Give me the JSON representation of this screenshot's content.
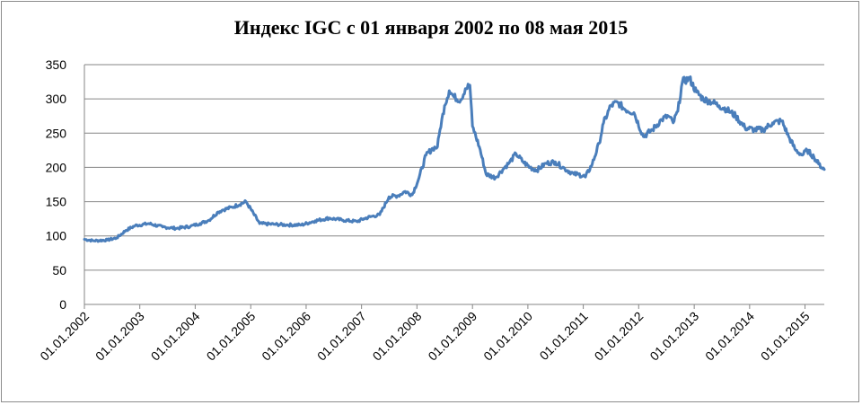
{
  "chart_data": {
    "type": "line",
    "title": "Индекс IGC с 01 января 2002 по 08 мая 2015",
    "xlabel": "",
    "ylabel": "",
    "ylim": [
      0,
      350
    ],
    "yticks": [
      0,
      50,
      100,
      150,
      200,
      250,
      300,
      350
    ],
    "xticks": [
      "01.01.2002",
      "01.01.2003",
      "01.01.2004",
      "01.01.2005",
      "01.01.2006",
      "01.01.2007",
      "01.01.2008",
      "01.01.2009",
      "01.01.2010",
      "01.01.2011",
      "01.01.2012",
      "01.01.2013",
      "01.01.2014",
      "01.01.2015"
    ],
    "xrange": [
      "2002-01-01",
      "2015-05-08"
    ],
    "grid": true,
    "series_color": "#4a7ebb",
    "series": [
      {
        "x": [
          "2002-01-01",
          "2002-03-01",
          "2002-06-01",
          "2002-08-01",
          "2002-10-01",
          "2002-12-01",
          "2003-03-01",
          "2003-06-01",
          "2003-09-01",
          "2003-12-01",
          "2004-02-01",
          "2004-04-01",
          "2004-06-01",
          "2004-07-01",
          "2004-09-01",
          "2004-12-01",
          "2005-03-01",
          "2005-06-01",
          "2005-09-01",
          "2005-12-01",
          "2006-03-01",
          "2006-06-01",
          "2006-09-01",
          "2006-12-01",
          "2007-01-15",
          "2007-03-01",
          "2007-05-01",
          "2007-07-01",
          "2007-09-01",
          "2007-10-15",
          "2007-12-01",
          "2008-01-15",
          "2008-03-01",
          "2008-04-15",
          "2008-05-15",
          "2008-06-01",
          "2008-07-01",
          "2008-08-01",
          "2008-09-01",
          "2008-10-15",
          "2008-11-15",
          "2008-12-15",
          "2009-01-01",
          "2009-02-15",
          "2009-04-01",
          "2009-06-01",
          "2009-08-01",
          "2009-09-01",
          "2009-10-15",
          "2009-12-01",
          "2010-01-15",
          "2010-03-01",
          "2010-05-01",
          "2010-07-01",
          "2010-09-01",
          "2010-11-01",
          "2010-12-01",
          "2011-01-15",
          "2011-03-01",
          "2011-04-15",
          "2011-05-15",
          "2011-07-01",
          "2011-08-15",
          "2011-10-01",
          "2011-12-01",
          "2012-02-01",
          "2012-04-01",
          "2012-06-01",
          "2012-07-15",
          "2012-08-15",
          "2012-09-15",
          "2012-10-15",
          "2012-12-01",
          "2013-01-15",
          "2013-03-01",
          "2013-05-01",
          "2013-06-15",
          "2013-08-01",
          "2013-10-01",
          "2013-12-01",
          "2014-02-01",
          "2014-04-01",
          "2014-06-01",
          "2014-08-01",
          "2014-09-15",
          "2014-11-01",
          "2014-12-15",
          "2015-01-15",
          "2015-03-01",
          "2015-04-01",
          "2015-05-08"
        ],
        "y": [
          95,
          93,
          94,
          97,
          108,
          115,
          118,
          113,
          111,
          114,
          118,
          123,
          135,
          138,
          142,
          150,
          118,
          117,
          116,
          116,
          122,
          126,
          123,
          121,
          125,
          128,
          131,
          157,
          159,
          165,
          160,
          185,
          218,
          228,
          230,
          255,
          290,
          312,
          303,
          298,
          315,
          320,
          260,
          230,
          190,
          185,
          200,
          207,
          220,
          208,
          200,
          196,
          206,
          208,
          198,
          190,
          190,
          186,
          205,
          235,
          265,
          290,
          295,
          285,
          280,
          245,
          255,
          270,
          275,
          265,
          282,
          325,
          330,
          310,
          300,
          295,
          290,
          285,
          275,
          258,
          255,
          255,
          265,
          268,
          245,
          225,
          218,
          225,
          215,
          205,
          197
        ]
      }
    ]
  }
}
